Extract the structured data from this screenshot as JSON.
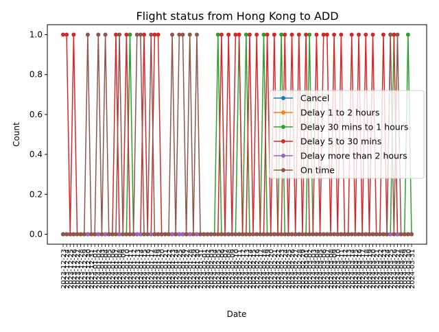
{
  "chart_data": {
    "type": "line",
    "title": "Flight status from Hong Kong to ADD",
    "xlabel": "Date",
    "ylabel": "Count",
    "ylim": [
      -0.05,
      1.05
    ],
    "yticks": [
      0.0,
      0.2,
      0.4,
      0.6,
      0.8,
      1.0
    ],
    "ytick_labels": [
      "0.0",
      "0.2",
      "0.4",
      "0.6",
      "0.8",
      "1.0"
    ],
    "grid": false,
    "legend_position": "center-right",
    "first_date": "2023-12-23",
    "last_date": "2024-03-31",
    "x": [
      "2023-12-23",
      "2023-12-24",
      "2023-12-25",
      "2023-12-26",
      "2023-12-27",
      "2023-12-28",
      "2023-12-29",
      "2023-12-30",
      "2023-12-31",
      "2024-01-01",
      "2024-01-02",
      "2024-01-03",
      "2024-01-04",
      "2024-01-05",
      "2024-01-06",
      "2024-01-07",
      "2024-01-08",
      "2024-01-09",
      "2024-01-10",
      "2024-01-11",
      "2024-01-12",
      "2024-01-13",
      "2024-01-14",
      "2024-01-15",
      "2024-01-16",
      "2024-01-17",
      "2024-01-18",
      "2024-01-19",
      "2024-01-20",
      "2024-01-21",
      "2024-01-22",
      "2024-01-23",
      "2024-01-24",
      "2024-01-25",
      "2024-01-26",
      "2024-01-27",
      "2024-01-28",
      "2024-01-29",
      "2024-01-30",
      "2024-01-31",
      "2024-02-01",
      "2024-02-02",
      "2024-02-03",
      "2024-02-04",
      "2024-02-05",
      "2024-02-06",
      "2024-02-07",
      "2024-02-08",
      "2024-02-09",
      "2024-02-10",
      "2024-02-11",
      "2024-02-12",
      "2024-02-13",
      "2024-02-14",
      "2024-02-15",
      "2024-02-16",
      "2024-02-17",
      "2024-02-18",
      "2024-02-19",
      "2024-02-20",
      "2024-02-21",
      "2024-02-22",
      "2024-02-23",
      "2024-02-24",
      "2024-02-25",
      "2024-02-26",
      "2024-02-27",
      "2024-02-28",
      "2024-02-29",
      "2024-03-01",
      "2024-03-02",
      "2024-03-03",
      "2024-03-04",
      "2024-03-05",
      "2024-03-06",
      "2024-03-07",
      "2024-03-08",
      "2024-03-09",
      "2024-03-10",
      "2024-03-11",
      "2024-03-12",
      "2024-03-13",
      "2024-03-14",
      "2024-03-15",
      "2024-03-16",
      "2024-03-17",
      "2024-03-18",
      "2024-03-19",
      "2024-03-20",
      "2024-03-21",
      "2024-03-22",
      "2024-03-23",
      "2024-03-24",
      "2024-03-25",
      "2024-03-26",
      "2024-03-27",
      "2024-03-28",
      "2024-03-29",
      "2024-03-30",
      "2024-03-31"
    ],
    "series": [
      {
        "name": "Cancel",
        "color": "#1f77b4",
        "values": [
          0,
          0,
          0,
          0,
          0,
          0,
          0,
          0,
          0,
          0,
          0,
          0,
          0,
          0,
          0,
          0,
          0,
          0,
          0,
          0,
          0,
          0,
          0,
          0,
          0,
          0,
          0,
          0,
          0,
          0,
          0,
          0,
          0,
          0,
          0,
          0,
          0,
          0,
          0,
          0,
          0,
          0,
          0,
          0,
          0,
          0,
          0,
          0,
          0,
          0,
          0,
          0,
          0,
          0,
          0,
          0,
          0,
          0,
          0,
          0,
          0,
          0,
          0,
          0,
          0,
          0,
          0,
          0,
          0,
          0,
          0,
          0,
          0,
          0,
          0,
          0,
          0,
          0,
          0,
          0,
          0,
          0,
          0,
          0,
          0,
          0,
          0,
          0,
          0,
          0,
          0,
          0,
          0,
          0,
          0,
          0,
          0,
          0,
          0,
          0
        ]
      },
      {
        "name": "Delay 1 to 2 hours",
        "color": "#ff7f0e",
        "values": [
          0,
          0,
          0,
          0,
          0,
          0,
          0,
          0,
          0,
          0,
          0,
          0,
          0,
          0,
          0,
          0,
          0,
          0,
          0,
          0,
          0,
          0,
          0,
          0,
          0,
          0,
          0,
          0,
          0,
          0,
          0,
          0,
          0,
          0,
          0,
          0,
          0,
          0,
          0,
          0,
          0,
          0,
          0,
          0,
          0,
          0,
          0,
          0,
          0,
          0,
          0,
          0,
          0,
          0,
          0,
          0,
          0,
          0,
          0,
          0,
          0,
          0,
          0,
          0,
          0,
          0,
          0,
          0,
          0,
          0,
          0,
          0,
          0,
          0,
          0,
          0,
          0,
          0,
          0,
          0,
          0,
          0,
          0,
          0,
          0,
          0,
          0,
          0,
          0,
          0,
          0,
          0,
          0,
          0,
          0,
          0,
          0,
          0,
          0,
          0
        ]
      },
      {
        "name": "Delay 30 mins to 1 hours",
        "color": "#2ca02c",
        "values": [
          0,
          0,
          0,
          0,
          0,
          0,
          0,
          0,
          0,
          0,
          0,
          0,
          0,
          0,
          0,
          0,
          0,
          0,
          0,
          1,
          0,
          0,
          0,
          0,
          0,
          0,
          0,
          0,
          0,
          0,
          0,
          0,
          0,
          0,
          0,
          0,
          0,
          0,
          0,
          0,
          0,
          0,
          0,
          0,
          1,
          0,
          0,
          0,
          0,
          0,
          1,
          0,
          1,
          0,
          0,
          0,
          0,
          1,
          0,
          0,
          0,
          0,
          1,
          0,
          0,
          0,
          0,
          0,
          0,
          0,
          1,
          0,
          0,
          0,
          0,
          0,
          0,
          0,
          0,
          0,
          0,
          0,
          0,
          0,
          0,
          0,
          0,
          0,
          0,
          0,
          0,
          0,
          0,
          0,
          1,
          0,
          0,
          0,
          1,
          0
        ]
      },
      {
        "name": "Delay 5 to 30 mins",
        "color": "#d62728",
        "values": [
          1,
          1,
          0,
          1,
          0,
          0,
          0,
          0,
          0,
          0,
          0,
          0,
          0,
          0,
          0,
          1,
          0,
          0,
          1,
          0,
          0,
          0,
          0,
          1,
          0,
          0,
          1,
          1,
          0,
          0,
          0,
          0,
          0,
          0,
          0,
          0,
          0,
          0,
          0,
          0,
          0,
          0,
          0,
          0,
          0,
          1,
          0,
          1,
          0,
          1,
          1,
          0,
          0,
          1,
          0,
          1,
          0,
          0,
          1,
          0,
          1,
          0,
          0,
          1,
          0,
          1,
          0,
          1,
          0,
          1,
          0,
          0,
          1,
          0,
          1,
          1,
          0,
          1,
          0,
          1,
          0,
          0,
          1,
          0,
          1,
          0,
          1,
          0,
          1,
          0,
          0,
          1,
          0,
          1,
          1,
          0,
          0,
          0,
          0,
          0
        ]
      },
      {
        "name": "Delay more than 2 hours",
        "color": "#9467bd",
        "values": [
          0,
          0,
          0,
          0,
          0,
          0,
          0,
          0,
          0,
          0,
          0,
          0,
          0,
          0,
          0,
          0,
          0,
          0,
          0,
          0,
          0,
          0,
          0,
          0,
          0,
          0,
          0,
          0,
          0,
          0,
          0,
          0,
          0,
          0,
          0,
          0,
          0,
          0,
          0,
          0,
          0,
          0,
          0,
          0,
          0,
          0,
          0,
          0,
          0,
          0,
          0,
          0,
          0,
          0,
          0,
          0,
          0,
          0,
          0,
          0,
          0,
          0,
          0,
          0,
          0,
          0,
          0,
          0,
          0,
          0,
          0,
          0,
          0,
          0,
          0,
          0,
          0,
          0,
          0,
          0,
          0,
          0,
          0,
          0,
          0,
          0,
          0,
          0,
          0,
          0,
          0,
          0,
          0,
          0,
          0,
          0,
          0,
          0,
          0,
          0
        ]
      },
      {
        "name": "On time",
        "color": "#8c564b",
        "values": [
          0,
          0,
          0,
          0,
          0,
          0,
          0,
          1,
          0,
          0,
          1,
          0,
          1,
          0,
          0,
          0,
          1,
          0,
          0,
          0,
          0,
          1,
          1,
          0,
          0,
          1,
          0,
          0,
          0,
          0,
          0,
          1,
          0,
          1,
          1,
          0,
          1,
          0,
          1,
          0,
          0,
          0,
          0,
          0,
          0,
          0,
          0,
          0,
          0,
          0,
          0,
          0,
          0,
          0,
          0,
          0,
          0,
          0,
          0,
          0,
          0,
          0,
          0,
          0,
          0,
          0,
          0,
          0,
          0,
          0,
          0,
          0,
          0,
          0,
          0,
          0,
          0,
          0,
          0,
          0,
          0,
          0,
          0,
          0,
          0,
          0,
          0,
          0,
          0,
          0,
          0,
          0,
          0,
          1,
          0,
          1,
          0,
          0,
          0,
          0
        ]
      }
    ]
  }
}
